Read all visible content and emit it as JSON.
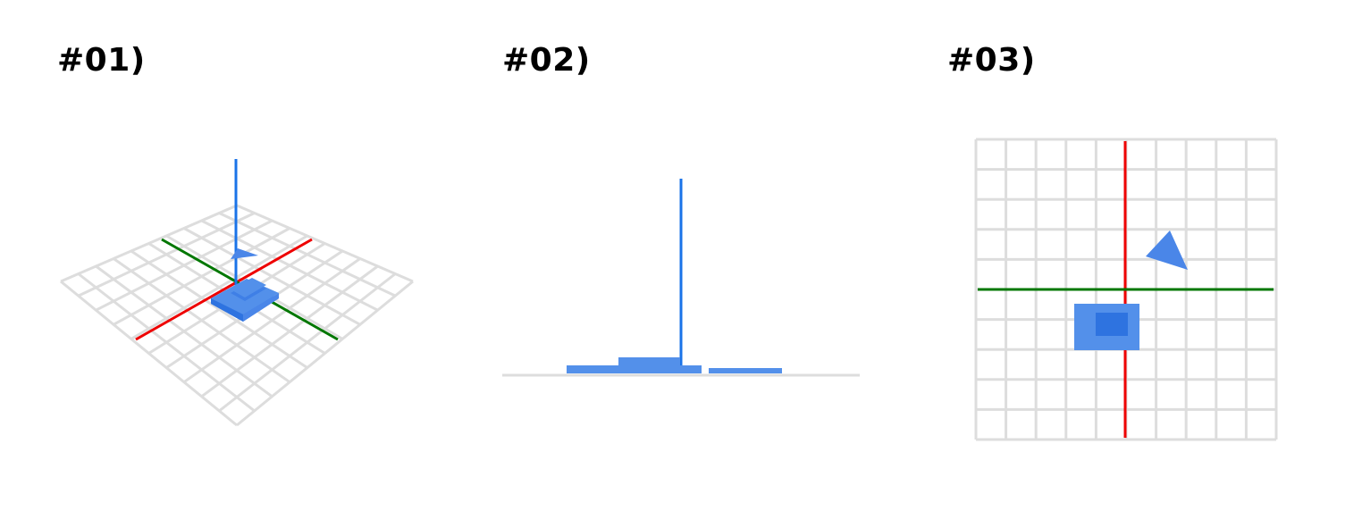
{
  "panels": [
    {
      "label": "#01)",
      "view": "perspective"
    },
    {
      "label": "#02)",
      "view": "side"
    },
    {
      "label": "#03)",
      "view": "top"
    }
  ],
  "colors": {
    "grid": "#dddddd",
    "x_axis": "#ee0000",
    "y_axis": "#007700",
    "z_axis": "#1a73e8",
    "object": "#5390ea",
    "object_dark": "#2e73e0",
    "background": "#ffffff"
  },
  "scene": {
    "grid_divisions": 10,
    "objects": [
      "box",
      "cone-marker"
    ]
  }
}
